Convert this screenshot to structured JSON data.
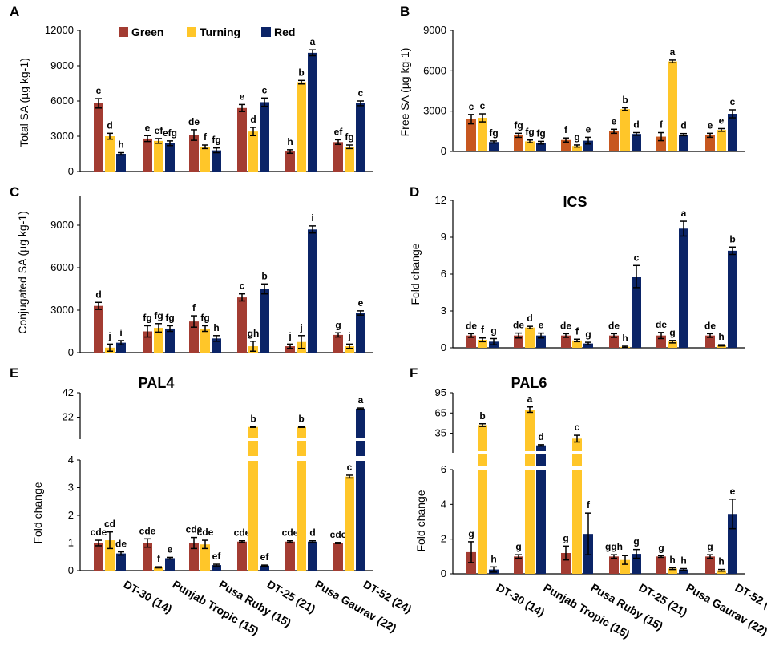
{
  "colors": {
    "green": "#a33c32",
    "green_alt": "#c7571f",
    "turning": "#ffc629",
    "red": "#0b2467",
    "axis": "#000000"
  },
  "legend": {
    "green": "Green",
    "turning": "Turning",
    "red": "Red"
  },
  "categories": [
    "DT-30 (14)",
    "Punjab Tropic (15)",
    "Pusa Ruby (15)",
    "DT-25 (21)",
    "Pusa Gaurav (22)",
    "DT-52 (24)"
  ],
  "chart_data": [
    {
      "id": "A",
      "type": "bar",
      "title": "",
      "ylabel": "Total SA (µg kg-1)",
      "ylim": [
        0,
        12000
      ],
      "yticks": [
        "0",
        "3000",
        "6000",
        "9000",
        "12000"
      ],
      "series": [
        {
          "name": "Green",
          "values": [
            5800,
            2800,
            3100,
            5400,
            1700,
            2500
          ],
          "err": [
            400,
            250,
            450,
            300,
            150,
            200
          ],
          "sig": [
            "c",
            "e",
            "de",
            "e",
            "h",
            "ef"
          ]
        },
        {
          "name": "Turning",
          "values": [
            3000,
            2600,
            2100,
            3400,
            7600,
            2100
          ],
          "err": [
            250,
            200,
            150,
            350,
            150,
            150
          ],
          "sig": [
            "d",
            "ef",
            "f",
            "d",
            "b",
            "fg"
          ]
        },
        {
          "name": "Red",
          "values": [
            1500,
            2400,
            1800,
            5900,
            10100,
            5800
          ],
          "err": [
            100,
            200,
            200,
            350,
            250,
            200
          ],
          "sig": [
            "h",
            "efg",
            "fg",
            "c",
            "a",
            "c"
          ]
        }
      ]
    },
    {
      "id": "B",
      "type": "bar",
      "title": "",
      "ylabel": "Free SA (µg kg-1)",
      "ylim": [
        0,
        9000
      ],
      "yticks": [
        "0",
        "3000",
        "6000",
        "9000"
      ],
      "series": [
        {
          "name": "Green",
          "values": [
            2400,
            1200,
            850,
            1500,
            1100,
            1200
          ],
          "err": [
            350,
            150,
            150,
            150,
            300,
            150
          ],
          "sig": [
            "c",
            "fg",
            "f",
            "e",
            "f",
            "e"
          ]
        },
        {
          "name": "Turning",
          "values": [
            2500,
            750,
            400,
            3150,
            6700,
            1600
          ],
          "err": [
            300,
            100,
            80,
            100,
            100,
            100
          ],
          "sig": [
            "c",
            "fg",
            "g",
            "b",
            "a",
            "e"
          ]
        },
        {
          "name": "Red",
          "values": [
            700,
            650,
            800,
            1300,
            1250,
            2800
          ],
          "err": [
            80,
            100,
            250,
            100,
            80,
            300
          ],
          "sig": [
            "fg",
            "fg",
            "e",
            "d",
            "d",
            "c"
          ]
        }
      ]
    },
    {
      "id": "C",
      "type": "bar",
      "title": "",
      "ylabel": "Conjugated SA (µg kg-1)",
      "ylim": [
        0,
        11000
      ],
      "yticks": [
        "0",
        "3000",
        "6000",
        "9000"
      ],
      "series": [
        {
          "name": "Green",
          "values": [
            3300,
            1500,
            2200,
            3900,
            450,
            1250
          ],
          "err": [
            250,
            400,
            400,
            250,
            150,
            150
          ],
          "sig": [
            "d",
            "fg",
            "f",
            "c",
            "j",
            "g"
          ]
        },
        {
          "name": "Turning",
          "values": [
            350,
            1750,
            1700,
            450,
            750,
            450
          ],
          "err": [
            250,
            300,
            200,
            350,
            450,
            150
          ],
          "sig": [
            "j",
            "fg",
            "fg",
            "gh",
            "j",
            "j"
          ]
        },
        {
          "name": "Red",
          "values": [
            700,
            1700,
            1000,
            4500,
            8700,
            2800
          ],
          "err": [
            150,
            200,
            200,
            350,
            250,
            150
          ],
          "sig": [
            "i",
            "fg",
            "h",
            "b",
            "i",
            "e"
          ]
        }
      ]
    },
    {
      "id": "D",
      "type": "bar",
      "title": "ICS",
      "ylabel": "Fold change",
      "ylim": [
        0,
        12
      ],
      "yticks": [
        "0",
        "3",
        "6",
        "9",
        "12"
      ],
      "series": [
        {
          "name": "Green",
          "values": [
            1,
            1,
            1,
            1,
            1,
            1
          ],
          "err": [
            0.15,
            0.2,
            0.15,
            0.15,
            0.25,
            0.15
          ],
          "sig": [
            "de",
            "de",
            "de",
            "de",
            "de",
            "de"
          ]
        },
        {
          "name": "Turning",
          "values": [
            0.65,
            1.65,
            0.6,
            0.08,
            0.5,
            0.2
          ],
          "err": [
            0.15,
            0.1,
            0.1,
            0.05,
            0.1,
            0.05
          ],
          "sig": [
            "f",
            "d",
            "f",
            "h",
            "g",
            "h"
          ]
        },
        {
          "name": "Red",
          "values": [
            0.5,
            1.0,
            0.35,
            5.8,
            9.7,
            7.9
          ],
          "err": [
            0.25,
            0.2,
            0.1,
            0.9,
            0.6,
            0.3
          ],
          "sig": [
            "g",
            "e",
            "g",
            "c",
            "a",
            "b"
          ]
        }
      ]
    },
    {
      "id": "E",
      "type": "bar",
      "title": "PAL4",
      "ylabel": "Fold change",
      "broken_axis": true,
      "ylim_lower": [
        0,
        4
      ],
      "ylim_upper": [
        4,
        42
      ],
      "yticks_lower": [
        "0",
        "1",
        "2",
        "3",
        "4"
      ],
      "yticks_upper": [
        "22",
        "42"
      ],
      "series": [
        {
          "name": "Green",
          "values": [
            1.0,
            1.0,
            1.0,
            1.05,
            1.05,
            1.0
          ],
          "err": [
            0.1,
            0.15,
            0.2,
            0.03,
            0.03,
            0.02
          ],
          "sig": [
            "cde",
            "cde",
            "cde",
            "cde",
            "cde",
            "cde"
          ]
        },
        {
          "name": "Turning",
          "values": [
            1.1,
            0.12,
            0.95,
            14,
            14,
            3.4
          ],
          "err": [
            0.3,
            0.02,
            0.15,
            0.3,
            0.3,
            0.05
          ],
          "sig": [
            "cd",
            "f",
            "cde",
            "b",
            "b",
            "c"
          ]
        },
        {
          "name": "Red",
          "values": [
            0.62,
            0.45,
            0.2,
            0.18,
            1.05,
            29
          ],
          "err": [
            0.06,
            0.03,
            0.03,
            0.02,
            0.03,
            0.5
          ],
          "sig": [
            "de",
            "e",
            "ef",
            "ef",
            "d",
            "a"
          ]
        }
      ]
    },
    {
      "id": "F",
      "type": "bar",
      "title": "PAL6",
      "ylabel": "Fold change",
      "broken_axis": true,
      "ylim_lower": [
        0,
        6
      ],
      "ylim_upper": [
        6,
        95
      ],
      "yticks_lower": [
        "0",
        "2",
        "4",
        "6"
      ],
      "yticks_upper": [
        "35",
        "65",
        "95"
      ],
      "series": [
        {
          "name": "Green",
          "values": [
            1.25,
            1.0,
            1.2,
            1.0,
            1.0,
            1.0
          ],
          "err": [
            0.6,
            0.1,
            0.4,
            0.1,
            0.05,
            0.1
          ],
          "sig": [
            "g",
            "g",
            "g",
            "ggh",
            "g",
            "g"
          ]
        },
        {
          "name": "Turning",
          "values": [
            47,
            70,
            27,
            0.8,
            0.3,
            0.2
          ],
          "err": [
            2,
            4,
            5,
            0.25,
            0.05,
            0.05
          ],
          "sig": [
            "b",
            "a",
            "c",
            "",
            "h",
            "h"
          ]
        },
        {
          "name": "Red",
          "values": [
            0.25,
            17,
            2.3,
            1.15,
            0.25,
            3.45
          ],
          "err": [
            0.15,
            1,
            1.2,
            0.25,
            0.05,
            0.85
          ],
          "sig": [
            "h",
            "d",
            "f",
            "g",
            "h",
            "e"
          ]
        }
      ]
    }
  ]
}
